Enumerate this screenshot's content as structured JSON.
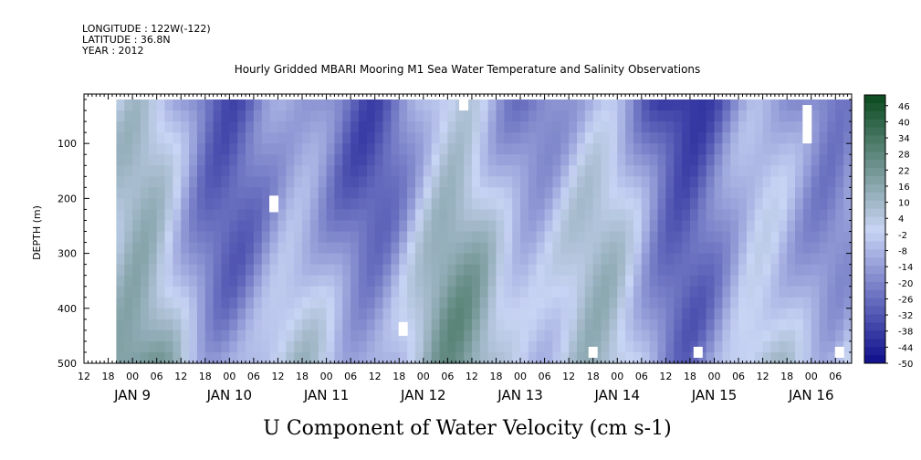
{
  "header": {
    "longitude": "LONGITUDE : 122W(-122)",
    "latitude": "LATITUDE : 36.8N",
    "year": "YEAR : 2012",
    "title": "Hourly Gridded MBARI Mooring M1 Sea Water Temperature and Salinity Observations"
  },
  "chart_data": {
    "type": "heatmap",
    "title": "Hourly Gridded MBARI Mooring M1 Sea Water Temperature and Salinity Observations",
    "xlabel": "U Component of Water Velocity (cm s-1)",
    "ylabel": "DEPTH (m)",
    "x_hour_ticks": [
      "12",
      "18",
      "00",
      "06",
      "12",
      "18",
      "00",
      "06",
      "12",
      "18",
      "00",
      "06",
      "12",
      "18",
      "00",
      "06",
      "12",
      "18",
      "00",
      "06",
      "12",
      "18",
      "00",
      "06",
      "12",
      "18",
      "00",
      "06",
      "12",
      "18",
      "00",
      "06"
    ],
    "x_day_labels": [
      "JAN  9",
      "JAN 10",
      "JAN 11",
      "JAN 12",
      "JAN 13",
      "JAN 14",
      "JAN 15",
      "JAN 16"
    ],
    "xlim": [
      "2012-01-08T12:00",
      "2012-01-16T10:00"
    ],
    "data_x_range": [
      "2012-01-08T20:00",
      "2012-01-16T09:00"
    ],
    "ylim": [
      500,
      10
    ],
    "y_reversed": true,
    "y_ticks": [
      100,
      200,
      300,
      400,
      500
    ],
    "data_depth_range": [
      20,
      490
    ],
    "colorbar": {
      "labels": [
        "46",
        "40",
        "34",
        "28",
        "22",
        "16",
        "10",
        "4",
        "-2",
        "-8",
        "-14",
        "-20",
        "-26",
        "-32",
        "-38",
        "-44",
        "-50"
      ],
      "range": [
        -50,
        50
      ],
      "step": 3,
      "negative_color": "#0a0a8a",
      "zero_color": "#c8d4f4",
      "positive_color": "#0a4a1e"
    },
    "pattern": "alternating vertical bands of negative (blue) and positive (green) U velocity; stronger negatives near the surface, stronger positives at depth",
    "missing_regions": [
      {
        "time": "2012-01-10T11:00",
        "depth": [
          195,
          225
        ]
      },
      {
        "time": "2012-01-11T19:00",
        "depth": [
          425,
          450
        ]
      },
      {
        "time": "2012-01-12T10:00",
        "depth": [
          20,
          40
        ]
      },
      {
        "time": "2012-01-13T18:00",
        "depth": [
          470,
          490
        ]
      },
      {
        "time": "2012-01-14T20:00",
        "depth": [
          470,
          490
        ]
      },
      {
        "time": "2012-01-15T23:00",
        "depth": [
          30,
          100
        ]
      },
      {
        "time": "2012-01-16T07:00",
        "depth": [
          470,
          490
        ]
      }
    ]
  }
}
